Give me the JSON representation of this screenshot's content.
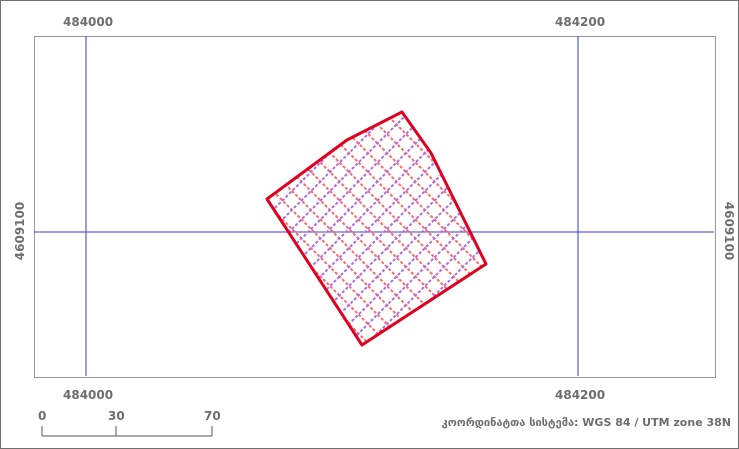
{
  "map": {
    "grid_labels": {
      "top_left": "484000",
      "top_right": "484200",
      "bottom_left": "484000",
      "bottom_right": "484200",
      "left": "4609100",
      "right": "4609100"
    },
    "coordinate_system": "კოორდინატთა სისტემა: WGS 84 / UTM zone 38N",
    "scale_bar": {
      "labels": [
        "0",
        "30",
        "70"
      ]
    },
    "colors": {
      "grid_line": "#3b3bd9",
      "parcel_outline": "#e00020",
      "hatch_a": "#ff6a6a",
      "hatch_b": "#b06ae8"
    },
    "feature": {
      "type": "parcel-polygon",
      "fill": "cross-hatch"
    }
  }
}
